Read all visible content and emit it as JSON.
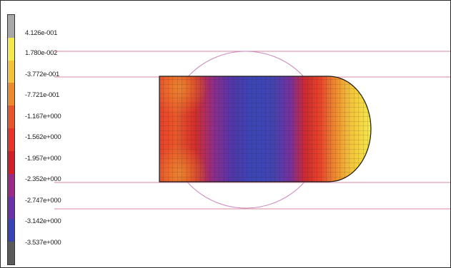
{
  "legend": {
    "labels": [
      "4.126e-001",
      "1.780e-002",
      "-3.772e-001",
      "-7.721e-001",
      "-1.167e+000",
      "-1.562e+000",
      "-1.957e+000",
      "-2.352e+000",
      "-2.747e+000",
      "-3.142e+000",
      "-3.537e+000"
    ],
    "colors": [
      "#a8a8a8",
      "#f4e94a",
      "#f1c23a",
      "#ec8a2e",
      "#e6562a",
      "#e63528",
      "#d01e2a",
      "#9a2a86",
      "#6a31a8",
      "#3a43b3",
      "#5a5a5a"
    ]
  },
  "colors": {
    "guide_line": "#d98aa0",
    "circle": "#cc88bb",
    "mesh_line": "#1a1a1a"
  }
}
